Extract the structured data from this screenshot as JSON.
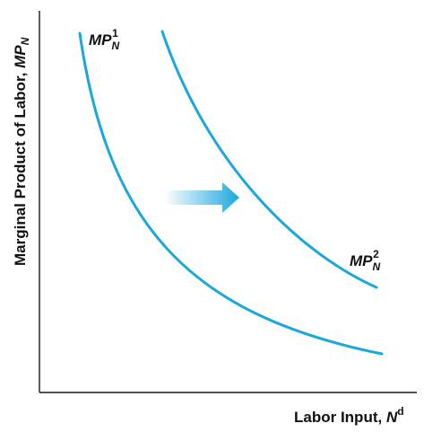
{
  "chart_data": {
    "type": "line",
    "title": "",
    "ylabel": {
      "main": "Marginal Product of Labor, ",
      "symbol": "MP",
      "subscript": "N"
    },
    "xlabel": {
      "main": "Labor Input, ",
      "symbol": "N",
      "superscript": "d"
    },
    "series": [
      {
        "name": "MP_N^1",
        "label": {
          "symbol": "MP",
          "subscript": "N",
          "superscript": "1"
        },
        "color": "#1aa8dc"
      },
      {
        "name": "MP_N^2",
        "label": {
          "symbol": "MP",
          "subscript": "N",
          "superscript": "2"
        },
        "color": "#1aa8dc"
      }
    ],
    "annotation": {
      "type": "shift-arrow",
      "direction": "right",
      "from_color": "#ffffff",
      "to_color": "#1aa8dc"
    },
    "grid": false,
    "axis_ticks": false
  }
}
